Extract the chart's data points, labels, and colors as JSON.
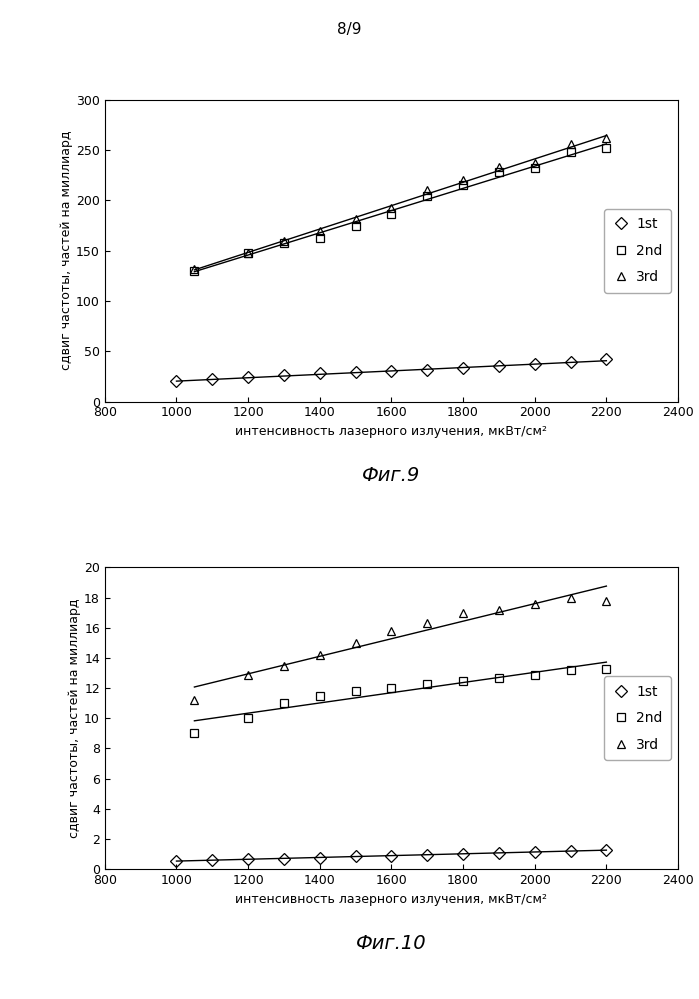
{
  "page_label": "8/9",
  "fig9_title": "Фиг.9",
  "fig10_title": "Фиг.10",
  "xlabel": "интенсивность лазерного излучения, мкВт/см²",
  "ylabel": "сдвиг частоты, частей на миллиард",
  "x_ticks": [
    800,
    1000,
    1200,
    1400,
    1600,
    1800,
    2000,
    2200,
    2400
  ],
  "x_lim": [
    800,
    2400
  ],
  "fig9_ylim": [
    0,
    300
  ],
  "fig9_yticks": [
    0,
    50,
    100,
    150,
    200,
    250,
    300
  ],
  "fig9_1st_x": [
    1000,
    1100,
    1200,
    1300,
    1400,
    1500,
    1600,
    1700,
    1800,
    1900,
    2000,
    2100,
    2200
  ],
  "fig9_1st_y": [
    20,
    22,
    24,
    26,
    28,
    29,
    30,
    31,
    33,
    35,
    37,
    39,
    42
  ],
  "fig9_2nd_x": [
    1050,
    1200,
    1300,
    1400,
    1500,
    1600,
    1700,
    1800,
    1900,
    2000,
    2100,
    2200
  ],
  "fig9_2nd_y": [
    130,
    148,
    158,
    163,
    175,
    187,
    204,
    215,
    228,
    232,
    248,
    252
  ],
  "fig9_3rd_x": [
    1050,
    1200,
    1300,
    1400,
    1500,
    1600,
    1700,
    1800,
    1900,
    2000,
    2100,
    2200
  ],
  "fig9_3rd_y": [
    132,
    148,
    160,
    170,
    182,
    192,
    210,
    220,
    233,
    237,
    256,
    262
  ],
  "fig10_ylim": [
    0,
    20
  ],
  "fig10_yticks": [
    0,
    2,
    4,
    6,
    8,
    10,
    12,
    14,
    16,
    18,
    20
  ],
  "fig10_1st_x": [
    1000,
    1100,
    1200,
    1300,
    1400,
    1500,
    1600,
    1700,
    1800,
    1900,
    2000,
    2100,
    2200
  ],
  "fig10_1st_y": [
    0.55,
    0.6,
    0.65,
    0.7,
    0.75,
    0.85,
    0.9,
    0.95,
    1.0,
    1.1,
    1.15,
    1.2,
    1.25
  ],
  "fig10_2nd_x": [
    1050,
    1200,
    1300,
    1400,
    1500,
    1600,
    1700,
    1800,
    1900,
    2000,
    2100,
    2200
  ],
  "fig10_2nd_y": [
    9.0,
    10.0,
    11.0,
    11.5,
    11.8,
    12.0,
    12.3,
    12.5,
    12.7,
    12.9,
    13.2,
    13.3
  ],
  "fig10_3rd_x": [
    1050,
    1200,
    1300,
    1400,
    1500,
    1600,
    1700,
    1800,
    1900,
    2000,
    2100,
    2200
  ],
  "fig10_3rd_y": [
    11.2,
    12.9,
    13.5,
    14.2,
    15.0,
    15.8,
    16.3,
    17.0,
    17.2,
    17.6,
    18.0,
    17.8
  ],
  "color": "#000000",
  "bg_color": "#ffffff",
  "legend_1st": "1st",
  "legend_2nd": "2nd",
  "legend_3rd": "3rd",
  "marker_size": 6,
  "line_width": 1.0,
  "font_size_label": 9,
  "font_size_tick": 9,
  "font_size_legend": 10,
  "font_size_title": 14,
  "font_size_page": 11
}
